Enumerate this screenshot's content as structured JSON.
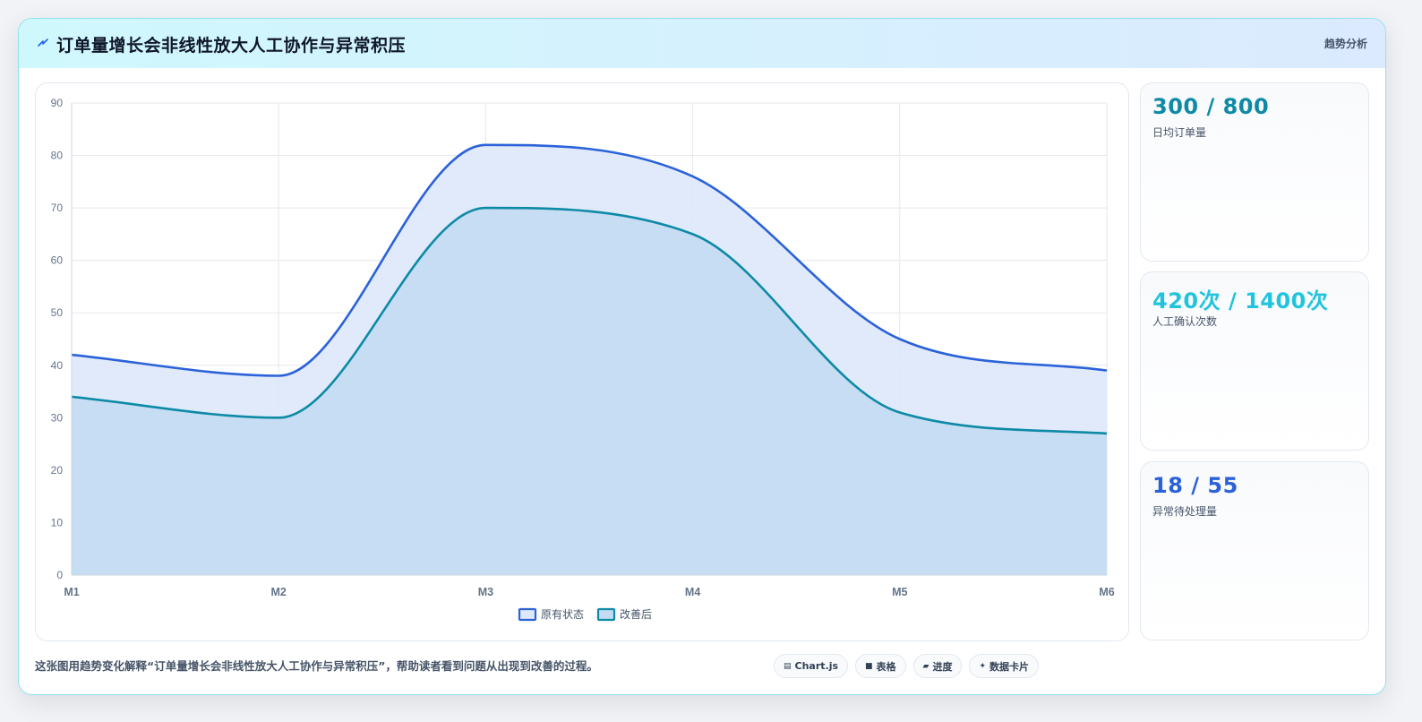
{
  "header": {
    "title": "订单量增长会非线性放大人工协作与异常积压",
    "badge": "趋势分析",
    "icon": "lightning-icon"
  },
  "colors": {
    "original": "#2b62d9",
    "improved": "#0e8aa6",
    "original_fill": "#dde8fb",
    "improved_fill": "#c4dcf2",
    "stat1": "#0e8aa6",
    "stat2": "#22c4dd",
    "stat3": "#2b62d9"
  },
  "chart_data": {
    "type": "area",
    "title": "",
    "xlabel": "",
    "ylabel": "",
    "x": [
      "M1",
      "M2",
      "M3",
      "M4",
      "M5",
      "M6"
    ],
    "ylim": [
      0,
      90
    ],
    "yticks": [
      0,
      10,
      20,
      30,
      40,
      50,
      60,
      70,
      80,
      90
    ],
    "grid": true,
    "legend": "bottom-center",
    "series": [
      {
        "name": "原有状态",
        "values": [
          42,
          38,
          82,
          76,
          45,
          39
        ]
      },
      {
        "name": "改善后",
        "values": [
          34,
          30,
          70,
          65,
          31,
          27
        ]
      }
    ]
  },
  "stats": [
    {
      "value": "300 / 800",
      "label": "日均订单量"
    },
    {
      "value": "420次 / 1400次",
      "label": "人工确认次数"
    },
    {
      "value": "18 / 55",
      "label": "异常待处理量"
    }
  ],
  "caption": "这张图用趋势变化解释“订单量增长会非线性放大人工协作与异常积压”，帮助读者看到问题从出现到改善的过程。",
  "chips": [
    {
      "icon": "chart-icon",
      "glyph": "▤",
      "label": "Chart.js"
    },
    {
      "icon": "table-icon",
      "glyph": "■",
      "label": "表格"
    },
    {
      "icon": "progress-icon",
      "glyph": "▰",
      "label": "进度"
    },
    {
      "icon": "card-icon",
      "glyph": "✦",
      "label": "数据卡片"
    }
  ]
}
